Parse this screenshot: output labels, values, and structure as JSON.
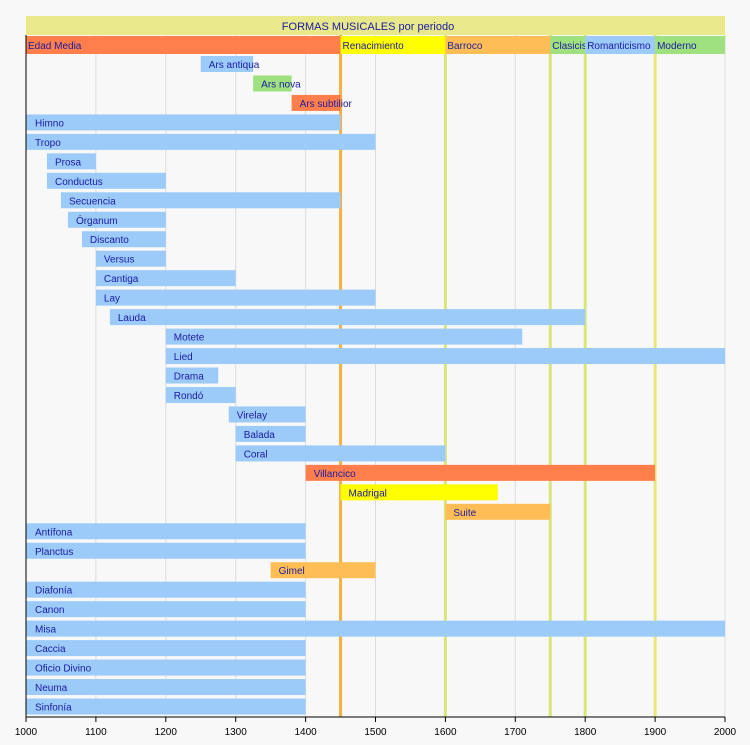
{
  "chart_data": {
    "type": "bar",
    "orientation": "horizontal-timeline",
    "title": "FORMAS MUSICALES por periodo",
    "xlim": [
      1000,
      2000
    ],
    "xticks": [
      1000,
      1100,
      1200,
      1300,
      1400,
      1500,
      1600,
      1700,
      1800,
      1900,
      2000
    ],
    "grid": true,
    "colors": {
      "blue": "#9ccbfa",
      "orange": "#ff7f4c",
      "yellow": "#ffff00",
      "lightorange": "#ffbe55",
      "green": "#9fe07f",
      "title_band": "#e9e98c",
      "label_text": "#1a1aa0"
    },
    "periods": [
      {
        "name": "Edad Media",
        "start": 1000,
        "end": 1450,
        "color": "orange"
      },
      {
        "name": "Renacimiento",
        "start": 1450,
        "end": 1600,
        "color": "yellow"
      },
      {
        "name": "Barroco",
        "start": 1600,
        "end": 1750,
        "color": "lightorange"
      },
      {
        "name": "Clasicismo",
        "start": 1750,
        "end": 1800,
        "color": "green"
      },
      {
        "name": "Romanticismo",
        "start": 1800,
        "end": 1900,
        "color": "blue"
      },
      {
        "name": "Moderno",
        "start": 1900,
        "end": 2000,
        "color": "green"
      }
    ],
    "period_lines": [
      {
        "x": 1450,
        "color": "#f5b043"
      },
      {
        "x": 1600,
        "color": "#d9e67a"
      },
      {
        "x": 1750,
        "color": "#d9e67a"
      },
      {
        "x": 1800,
        "color": "#d9e67a"
      },
      {
        "x": 1900,
        "color": "#e8e87a"
      }
    ],
    "bars": [
      {
        "name": "Ars antiqua",
        "start": 1250,
        "end": 1325,
        "color": "blue"
      },
      {
        "name": "Ars nova",
        "start": 1325,
        "end": 1380,
        "color": "green"
      },
      {
        "name": "Ars subtilior",
        "start": 1380,
        "end": 1450,
        "color": "orange"
      },
      {
        "name": "Himno",
        "start": 1000,
        "end": 1450,
        "color": "blue"
      },
      {
        "name": "Tropo",
        "start": 1000,
        "end": 1500,
        "color": "blue"
      },
      {
        "name": "Prosa",
        "start": 1030,
        "end": 1100,
        "color": "blue"
      },
      {
        "name": "Conductus",
        "start": 1030,
        "end": 1200,
        "color": "blue"
      },
      {
        "name": "Secuencia",
        "start": 1050,
        "end": 1450,
        "color": "blue"
      },
      {
        "name": "Órganum",
        "start": 1060,
        "end": 1200,
        "color": "blue"
      },
      {
        "name": "Discanto",
        "start": 1080,
        "end": 1200,
        "color": "blue"
      },
      {
        "name": "Versus",
        "start": 1100,
        "end": 1200,
        "color": "blue"
      },
      {
        "name": "Cantiga",
        "start": 1100,
        "end": 1300,
        "color": "blue"
      },
      {
        "name": "Lay",
        "start": 1100,
        "end": 1500,
        "color": "blue"
      },
      {
        "name": "Lauda",
        "start": 1120,
        "end": 1800,
        "color": "blue"
      },
      {
        "name": "Motete",
        "start": 1200,
        "end": 1710,
        "color": "blue"
      },
      {
        "name": "Lied",
        "start": 1200,
        "end": 2000,
        "color": "blue"
      },
      {
        "name": "Drama",
        "start": 1200,
        "end": 1275,
        "color": "blue"
      },
      {
        "name": "Rondó",
        "start": 1200,
        "end": 1300,
        "color": "blue"
      },
      {
        "name": "Virelay",
        "start": 1290,
        "end": 1400,
        "color": "blue"
      },
      {
        "name": "Balada",
        "start": 1300,
        "end": 1400,
        "color": "blue"
      },
      {
        "name": "Coral",
        "start": 1300,
        "end": 1600,
        "color": "blue"
      },
      {
        "name": "Villancico",
        "start": 1400,
        "end": 1900,
        "color": "orange"
      },
      {
        "name": "Madrigal",
        "start": 1450,
        "end": 1675,
        "color": "yellow"
      },
      {
        "name": "Suite",
        "start": 1600,
        "end": 1750,
        "color": "lightorange"
      },
      {
        "name": "Antífona",
        "start": 1000,
        "end": 1400,
        "color": "blue"
      },
      {
        "name": "Planctus",
        "start": 1000,
        "end": 1400,
        "color": "blue"
      },
      {
        "name": "Gimel",
        "start": 1350,
        "end": 1500,
        "color": "lightorange"
      },
      {
        "name": "Diafonía",
        "start": 1000,
        "end": 1400,
        "color": "blue"
      },
      {
        "name": "Canon",
        "start": 1000,
        "end": 1400,
        "color": "blue"
      },
      {
        "name": "Misa",
        "start": 1000,
        "end": 2000,
        "color": "blue"
      },
      {
        "name": "Caccia",
        "start": 1000,
        "end": 1400,
        "color": "blue"
      },
      {
        "name": "Oficio Divino",
        "start": 1000,
        "end": 1400,
        "color": "blue"
      },
      {
        "name": "Neuma",
        "start": 1000,
        "end": 1400,
        "color": "blue"
      },
      {
        "name": "Sinfonía",
        "start": 1000,
        "end": 1400,
        "color": "blue"
      }
    ]
  }
}
